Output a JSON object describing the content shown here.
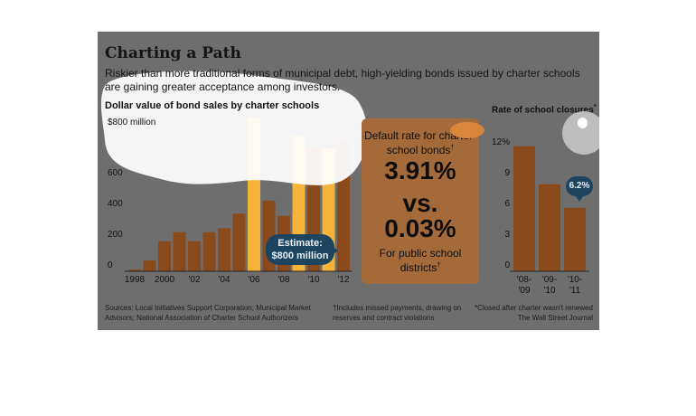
{
  "headline": "Charting a Path",
  "deck": "Riskier than more traditional forms of municipal debt, high-yielding bonds issued by charter schools are gaining greater acceptance among investors.",
  "middle": {
    "label": "Default rate for charter-school bonds",
    "label_mark": "†",
    "value1": "3.91%",
    "vs": "vs.",
    "value2": "0.03%",
    "sub": "For public school districts",
    "sub_mark": "†"
  },
  "estimate_callout": {
    "line1": "Estimate:",
    "line2": "$800 million"
  },
  "footnotes": {
    "sources": "Sources: Local Initiatives Support Corporation; Municipal Market Advisors; National Association of Charter School Authorizers",
    "default": "†Includes missed payments, drawing on reserves and contract violations",
    "closed": "*Closed after charter wasn't renewed",
    "credit": "The Wall Street Journal"
  },
  "colors": {
    "bar": "#8b4a1c",
    "highlight": "#f5b33a",
    "panel": "#6e6e6e",
    "callout": "#1d4560"
  },
  "chart_data": [
    {
      "type": "bar",
      "title": "Dollar value of bond sales by charter schools",
      "categories": [
        "1998",
        "1999",
        "2000",
        "2001",
        "2002",
        "2003",
        "2004",
        "2005",
        "2006",
        "2007",
        "2008",
        "2009",
        "2010",
        "2011",
        "2012"
      ],
      "x_tick_labels": [
        "1998",
        "2000",
        "'02",
        "'04",
        "'06",
        "'08",
        "'10",
        "'12"
      ],
      "x_tick_categories": [
        "1998",
        "2000",
        "2002",
        "2004",
        "2006",
        "2008",
        "2010",
        "2012"
      ],
      "values": [
        10,
        70,
        195,
        255,
        195,
        255,
        280,
        375,
        1000,
        460,
        360,
        880,
        800,
        800,
        850
      ],
      "y_tick_labels": [
        "0",
        "200",
        "400",
        "600",
        "$800 million"
      ],
      "y_tick_values": [
        0,
        200,
        400,
        600,
        800
      ],
      "ylim": [
        0,
        1000
      ]
    },
    {
      "type": "bar",
      "title": "Rate of school closures",
      "title_mark": "*",
      "categories": [
        "'08-'09",
        "'09-'10",
        "'10-'11"
      ],
      "values": [
        12.2,
        8.5,
        6.2
      ],
      "y_tick_labels": [
        "0",
        "3",
        "6",
        "9",
        "12%"
      ],
      "y_tick_values": [
        0,
        3,
        6,
        9,
        12
      ],
      "ylim": [
        0,
        13.5
      ],
      "annotation": "6.2%"
    }
  ]
}
